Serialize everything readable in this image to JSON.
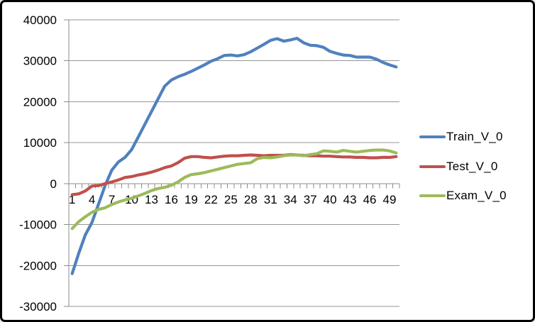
{
  "chart_data": {
    "type": "line",
    "title": "",
    "xlabel": "",
    "ylabel": "",
    "x": [
      1,
      2,
      3,
      4,
      5,
      6,
      7,
      8,
      9,
      10,
      11,
      12,
      13,
      14,
      15,
      16,
      17,
      18,
      19,
      20,
      21,
      22,
      23,
      24,
      25,
      26,
      27,
      28,
      29,
      30,
      31,
      32,
      33,
      34,
      35,
      36,
      37,
      38,
      39,
      40,
      41,
      42,
      43,
      44,
      45,
      46,
      47,
      48,
      49,
      50
    ],
    "xtick_labels": [
      "1",
      "4",
      "7",
      "10",
      "13",
      "16",
      "19",
      "22",
      "25",
      "28",
      "31",
      "34",
      "37",
      "40",
      "43",
      "46",
      "49"
    ],
    "yticks": [
      40000,
      30000,
      20000,
      10000,
      0,
      -10000,
      -20000,
      -30000
    ],
    "ylim": [
      -30000,
      40000
    ],
    "grid": true,
    "legend_position": "right",
    "series": [
      {
        "name": "Train_V_0",
        "color": "#4F81BD",
        "values": [
          -22000,
          -17000,
          -12500,
          -9500,
          -5000,
          -400,
          3300,
          5300,
          6400,
          8300,
          11400,
          14500,
          17600,
          20700,
          23800,
          25300,
          26100,
          26700,
          27400,
          28200,
          29000,
          29900,
          30500,
          31300,
          31400,
          31200,
          31500,
          32200,
          33100,
          34000,
          35000,
          35400,
          34800,
          35100,
          35500,
          34400,
          33800,
          33700,
          33300,
          32300,
          31800,
          31400,
          31300,
          30900,
          30900,
          30900,
          30400,
          29600,
          29000,
          28500
        ]
      },
      {
        "name": "Test_V_0",
        "color": "#C0504D",
        "values": [
          -2700,
          -2500,
          -1800,
          -600,
          -500,
          0,
          400,
          900,
          1500,
          1700,
          2100,
          2400,
          2800,
          3300,
          3900,
          4300,
          5100,
          6200,
          6600,
          6600,
          6400,
          6300,
          6500,
          6700,
          6800,
          6800,
          6900,
          7000,
          6900,
          6800,
          6900,
          6900,
          6900,
          7100,
          7000,
          6900,
          6800,
          6800,
          6700,
          6700,
          6600,
          6500,
          6500,
          6400,
          6400,
          6300,
          6300,
          6400,
          6400,
          6600
        ]
      },
      {
        "name": "Exam_V_0",
        "color": "#9BBB59",
        "values": [
          -11000,
          -9300,
          -8100,
          -7000,
          -6300,
          -5900,
          -5100,
          -4500,
          -4000,
          -3600,
          -3000,
          -2400,
          -1700,
          -1200,
          -900,
          -400,
          400,
          1500,
          2200,
          2400,
          2700,
          3100,
          3500,
          3900,
          4300,
          4700,
          4900,
          5100,
          6100,
          6400,
          6300,
          6500,
          6800,
          7000,
          7000,
          6800,
          7100,
          7300,
          8000,
          7900,
          7700,
          8100,
          7900,
          7700,
          7900,
          8100,
          8200,
          8200,
          8000,
          7500
        ]
      }
    ],
    "colors": {
      "gridline": "#969696",
      "axis": "#8C8C8C",
      "text": "#000000",
      "background": "#FFFFFF",
      "frame_border": "#000000"
    }
  }
}
